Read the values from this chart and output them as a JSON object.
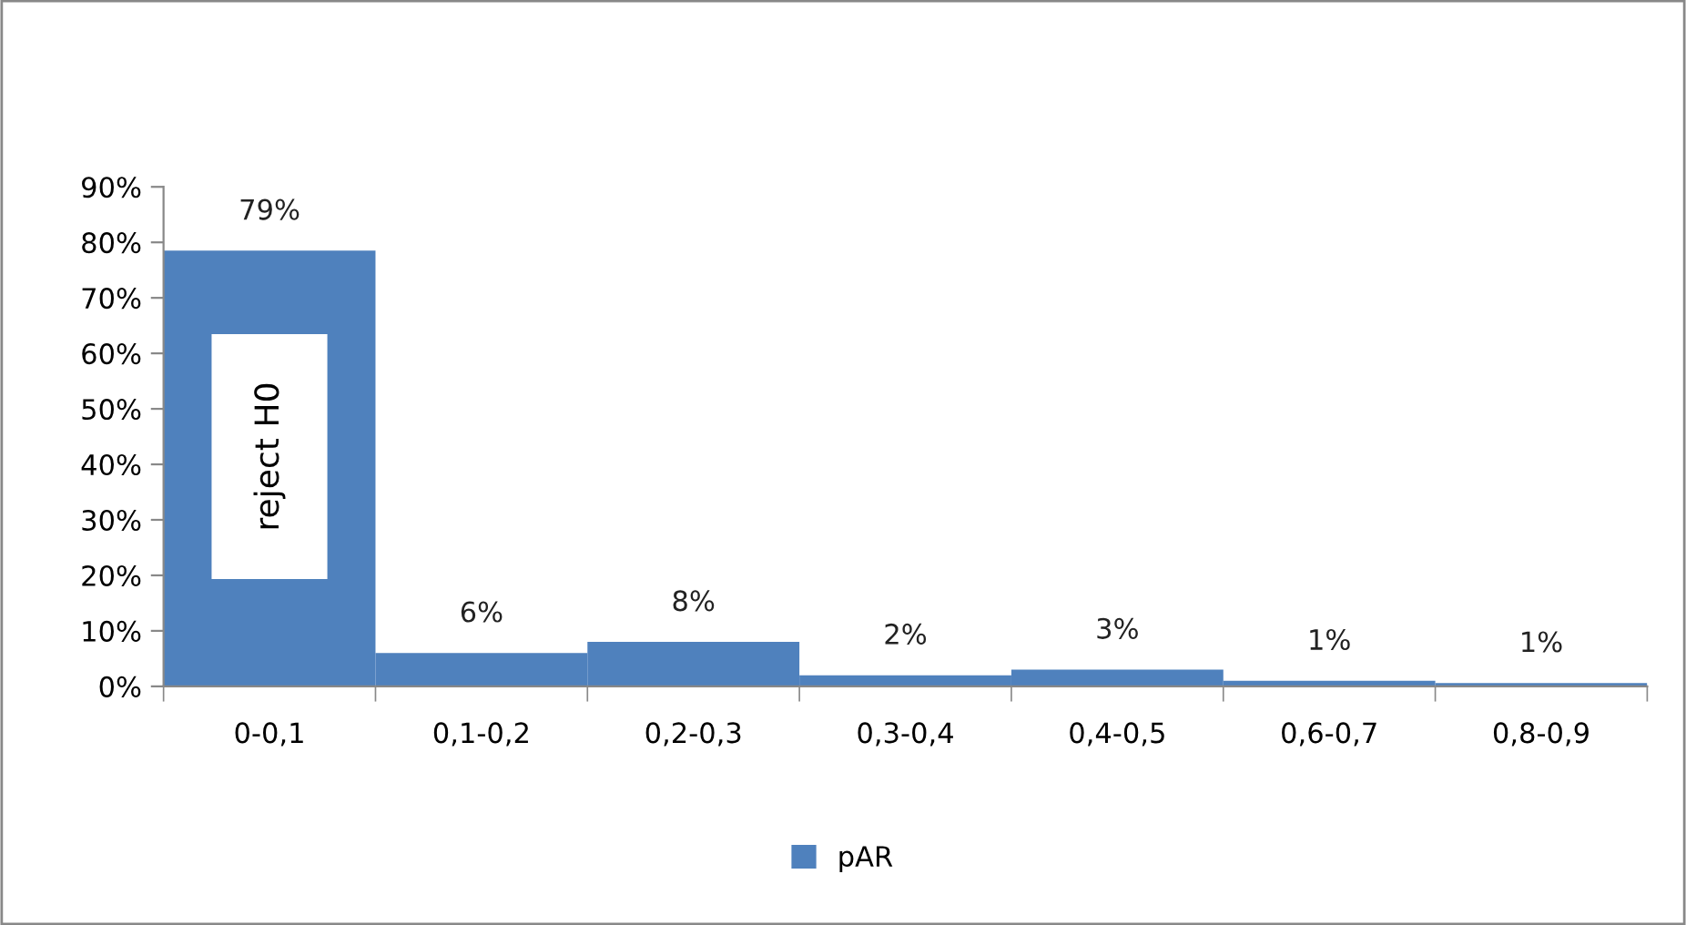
{
  "chart_data": {
    "type": "bar",
    "categories": [
      "0-0,1",
      "0,1-0,2",
      "0,2-0,3",
      "0,3-0,4",
      "0,4-0,5",
      "0,6-0,7",
      "0,8-0,9"
    ],
    "series": [
      {
        "name": "pAR",
        "color": "#4f81bd",
        "values": [
          78.5,
          6,
          8,
          2,
          3,
          1,
          0.6
        ],
        "value_labels": [
          "79%",
          "6%",
          "8%",
          "2%",
          "3%",
          "1%",
          "1%"
        ]
      }
    ],
    "ylim": [
      0,
      90
    ],
    "yticks": [
      {
        "value": 0,
        "label": "0%"
      },
      {
        "value": 10,
        "label": "10%"
      },
      {
        "value": 20,
        "label": "20%"
      },
      {
        "value": 30,
        "label": "30%"
      },
      {
        "value": 40,
        "label": "40%"
      },
      {
        "value": 50,
        "label": "50%"
      },
      {
        "value": 60,
        "label": "60%"
      },
      {
        "value": 70,
        "label": "70%"
      },
      {
        "value": 80,
        "label": "80%"
      },
      {
        "value": 90,
        "label": "90%"
      }
    ],
    "annotations": [
      "reject H0"
    ],
    "grid": false,
    "legend": "bottom"
  }
}
